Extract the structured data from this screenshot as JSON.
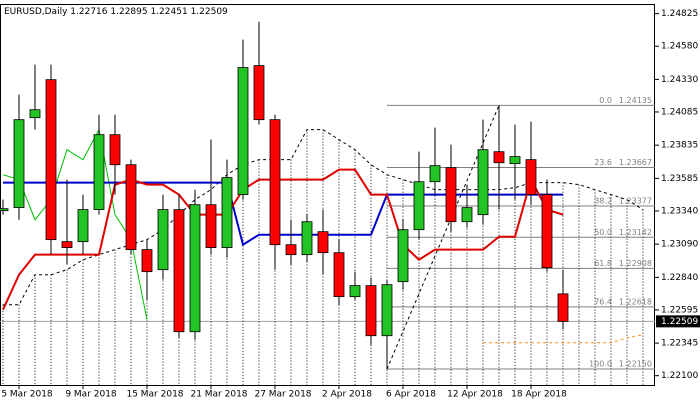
{
  "chart_data": {
    "type": "candlestick",
    "title": "EURUSD,Daily",
    "header_values": [
      1.22716,
      1.22895,
      1.22451,
      1.22509
    ],
    "categories": [
      null,
      "5 Mar 2018",
      null,
      null,
      null,
      "9 Mar 2018",
      null,
      null,
      null,
      "15 Mar 2018",
      null,
      null,
      null,
      "21 Mar 2018",
      null,
      null,
      null,
      "27 Mar 2018",
      null,
      null,
      null,
      "2 Apr 2018",
      null,
      null,
      null,
      "6 Apr 2018",
      null,
      null,
      null,
      "12 Apr 2018",
      null,
      null,
      null,
      "18 Apr 2018",
      null,
      null,
      null,
      null,
      null,
      null,
      null
    ],
    "open": [
      1.23342,
      1.23365,
      1.24042,
      1.24328,
      1.23109,
      1.23109,
      1.2335,
      1.23914,
      1.23688,
      1.23049,
      1.22898,
      1.2335,
      1.22431,
      1.23387,
      1.23064,
      1.23463,
      1.24434,
      1.24027,
      1.23086,
      1.23011,
      1.23184,
      1.23026,
      1.22695,
      1.22778,
      1.22401,
      1.22808,
      1.23199,
      1.2356,
      1.23666,
      1.23259,
      1.23312,
      1.23786,
      1.23696,
      1.23726,
      1.23463,
      1.22716,
      null,
      null,
      null,
      null,
      null
    ],
    "high": [
      1.23425,
      1.24215,
      1.24441,
      1.24441,
      1.23576,
      1.23463,
      1.24065,
      1.24065,
      1.23726,
      1.23124,
      1.23463,
      1.23463,
      1.235,
      1.23877,
      1.23726,
      1.24629,
      1.24765,
      1.24065,
      1.23274,
      1.23312,
      1.2335,
      1.23124,
      1.22883,
      1.22838,
      1.22823,
      1.23274,
      1.23786,
      1.23967,
      1.23839,
      1.23538,
      1.24027,
      1.24135,
      1.2399,
      1.24012,
      1.23576,
      1.22895,
      null,
      null,
      null,
      null,
      null
    ],
    "low": [
      1.23312,
      1.23274,
      1.23952,
      1.23011,
      1.22936,
      1.23011,
      1.23312,
      1.23463,
      1.23011,
      1.22672,
      1.22823,
      1.22386,
      1.22371,
      1.23011,
      1.22988,
      1.23425,
      1.2399,
      1.22898,
      1.22936,
      1.22958,
      1.2286,
      1.22634,
      1.22672,
      1.22333,
      1.2215,
      1.22747,
      1.23124,
      1.23463,
      1.23184,
      1.23214,
      1.23237,
      1.2335,
      1.23425,
      1.23387,
      1.22883,
      1.22451,
      null,
      null,
      null,
      null,
      null
    ],
    "close": [
      1.23357,
      1.24027,
      1.24102,
      1.23124,
      1.23064,
      1.2335,
      1.23914,
      1.23688,
      1.23049,
      1.22883,
      1.2335,
      1.22431,
      1.23387,
      1.23064,
      1.23591,
      1.24419,
      1.24027,
      1.23086,
      1.23011,
      1.23259,
      1.23026,
      1.22695,
      1.22778,
      1.22401,
      1.22785,
      1.23199,
      1.2356,
      1.23681,
      1.23259,
      1.23365,
      1.23801,
      1.23703,
      1.23749,
      1.23463,
      1.22913,
      1.22509,
      null,
      null,
      null,
      null,
      null
    ],
    "up_color": "#22c322",
    "down_color": "#ff0000",
    "indicators": [
      {
        "color": "#000000",
        "style": "cloud",
        "values": [
          1.22634,
          1.22634,
          1.2286,
          1.2286,
          1.22898,
          1.22973,
          1.23011,
          1.23049,
          1.23086,
          1.23124,
          1.23199,
          1.23312,
          1.23425,
          1.235,
          1.23613,
          1.23688,
          1.23726,
          1.23726,
          1.23726,
          1.23952,
          1.23952,
          1.23877,
          1.23801,
          1.23688,
          1.23613,
          1.23576,
          1.23538,
          1.235,
          1.235,
          1.235,
          1.235,
          1.235,
          1.23515,
          1.23553,
          1.23553,
          1.23553,
          1.23538,
          1.235,
          1.23463,
          1.23425,
          1.2335
        ]
      },
      {
        "color": "#ff8c1a",
        "style": "dashed",
        "values": [
          null,
          null,
          null,
          null,
          null,
          null,
          null,
          null,
          null,
          null,
          null,
          null,
          null,
          null,
          null,
          null,
          null,
          null,
          null,
          null,
          null,
          null,
          null,
          null,
          null,
          null,
          null,
          null,
          null,
          null,
          1.22348,
          1.22348,
          1.22348,
          1.22348,
          1.22348,
          1.22348,
          1.22348,
          1.22348,
          1.22348,
          1.22385,
          1.22409
        ]
      },
      {
        "color": "#00c000",
        "style": "solid",
        "values": [
          1.23613,
          1.23576,
          1.23274,
          1.23425,
          1.23801,
          1.23726,
          1.23952,
          1.23312,
          1.23124,
          1.22522,
          null,
          null,
          null,
          null,
          null,
          null,
          null,
          null,
          null,
          null,
          null,
          null,
          null,
          null,
          null,
          null,
          null,
          null,
          null,
          null,
          null,
          null,
          null,
          null,
          null,
          null,
          null,
          null,
          null,
          null,
          null
        ]
      },
      {
        "color": "#0000cc",
        "style": "thick",
        "values": [
          1.23553,
          1.23553,
          1.23553,
          1.23553,
          1.23553,
          1.23553,
          1.23553,
          1.23553,
          1.23553,
          1.23553,
          1.23553,
          1.23553,
          1.23553,
          1.23553,
          1.23553,
          1.23086,
          1.23161,
          1.23161,
          1.23161,
          1.23161,
          1.23161,
          1.23161,
          1.23161,
          1.23161,
          1.23463,
          1.23463,
          1.23463,
          1.23463,
          1.23463,
          1.23463,
          1.23463,
          1.23463,
          1.23463,
          1.23463,
          1.23463,
          1.23463,
          null,
          null,
          null,
          null,
          null
        ]
      },
      {
        "color": "#e00000",
        "style": "thick",
        "values": [
          1.22597,
          1.2286,
          1.23011,
          1.23011,
          1.23011,
          1.23011,
          1.23011,
          1.23538,
          1.23576,
          1.23538,
          1.23538,
          1.23463,
          1.23312,
          1.23312,
          1.23312,
          1.235,
          1.23576,
          1.23576,
          1.23576,
          1.23576,
          1.23576,
          1.23651,
          1.23651,
          1.23463,
          1.23463,
          1.23086,
          1.22973,
          1.23049,
          1.23049,
          1.23049,
          1.23049,
          1.23146,
          1.23146,
          1.23576,
          1.2335,
          1.23312,
          null,
          null,
          null,
          null,
          null
        ]
      }
    ],
    "fibonacci": {
      "color": "#808080",
      "levels": [
        {
          "ratio": "0.0",
          "price": 1.24135
        },
        {
          "ratio": "23.6",
          "price": 1.23667
        },
        {
          "ratio": "38.2",
          "price": 1.23377
        },
        {
          "ratio": "50.0",
          "price": 1.23142
        },
        {
          "ratio": "61.8",
          "price": 1.22908
        },
        {
          "ratio": "76.4",
          "price": 1.22618
        },
        {
          "ratio": "100.0",
          "price": {
            "value": 1.2215,
            "label": "1.22150"
          }
        }
      ]
    },
    "last_price": 1.22509,
    "ylim": [
      1.2203,
      1.2489
    ],
    "yticks": [
      1.24825,
      {
        "value": 1.2458,
        "label": "1.24580"
      },
      {
        "value": 1.2433,
        "label": "1.24330"
      },
      1.24085,
      1.23835,
      1.23585,
      {
        "value": 1.2334,
        "label": "1.23340"
      },
      {
        "value": 1.2309,
        "label": "1.23090"
      },
      {
        "value": 1.2284,
        "label": "1.22840"
      },
      1.22595,
      1.22345,
      {
        "value": 1.221,
        "label": "1.22100"
      }
    ]
  }
}
